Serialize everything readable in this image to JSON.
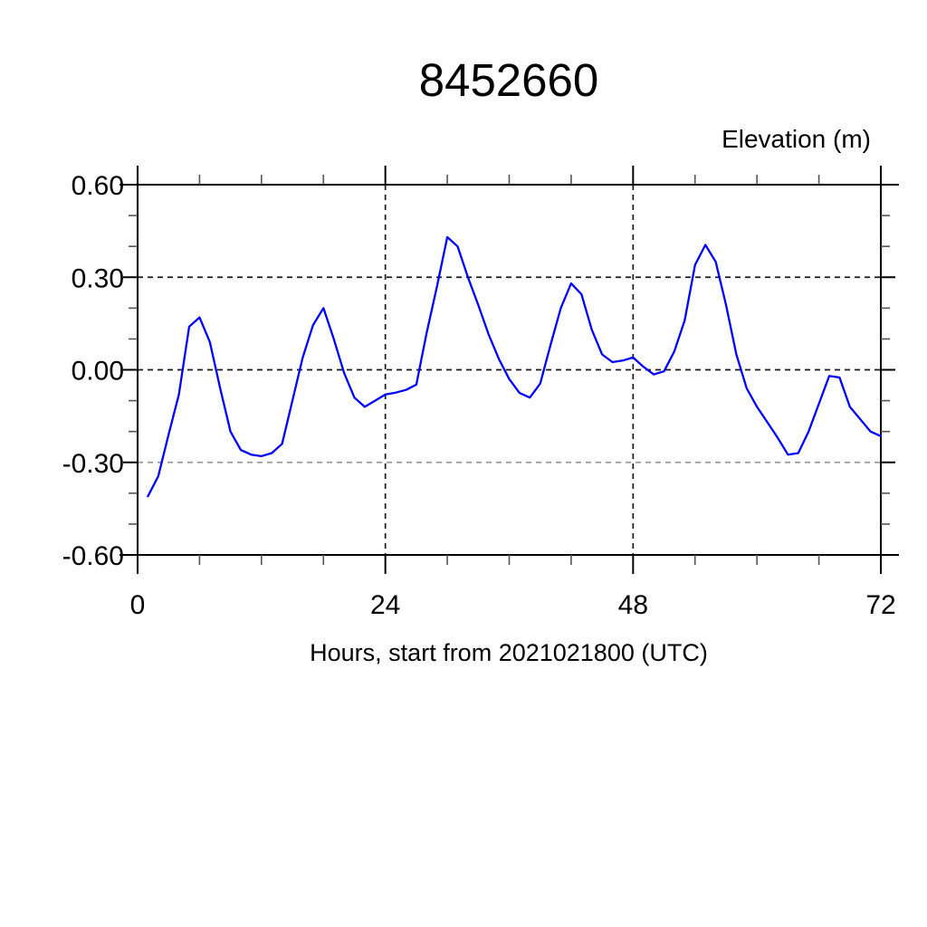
{
  "window": {
    "background": "#ffffff"
  },
  "chart_data": {
    "type": "line",
    "title": "8452660",
    "ylabel": "Elevation (m)",
    "xlabel": "Hours, start from 2021021800 (UTC)",
    "xlim": [
      0,
      72
    ],
    "ylim": [
      -0.6,
      0.6
    ],
    "xticks": {
      "major": [
        0,
        24,
        48,
        72
      ],
      "labels": [
        "0",
        "24",
        "48",
        "72"
      ],
      "minor_step": 6
    },
    "yticks": {
      "major": [
        0.6,
        0.3,
        0,
        -0.3,
        -0.6
      ],
      "labels": [
        "0.60",
        "0.30",
        "0.00",
        "-0.30",
        "-0.60"
      ],
      "minor_step": 0.1
    },
    "grid": {
      "vertical": [
        24,
        48
      ],
      "vertical_color": "#1a1a1a",
      "horizontal": [
        {
          "value": 0.3,
          "color": "#1a1a1a"
        },
        {
          "value": 0.0,
          "color": "#1a1a1a"
        },
        {
          "value": -0.3,
          "color": "#999999"
        }
      ],
      "dash": [
        6,
        5
      ],
      "style": "dashed"
    },
    "legend": "none",
    "frame_color": "#000000",
    "series": [
      {
        "name": "elevation",
        "color": "#0000ff",
        "x": [
          1,
          2,
          3,
          4,
          5,
          6,
          7,
          8,
          9,
          10,
          11,
          12,
          13,
          14,
          15,
          16,
          17,
          18,
          19,
          20,
          21,
          22,
          23,
          24,
          25,
          26,
          27,
          28,
          29,
          30,
          31,
          32,
          33,
          34,
          35,
          36,
          37,
          38,
          39,
          40,
          41,
          42,
          43,
          44,
          45,
          46,
          47,
          48,
          49,
          50,
          51,
          52,
          53,
          54,
          55,
          56,
          57,
          58,
          59,
          60,
          61,
          62,
          63,
          64,
          65,
          66,
          67,
          68,
          69,
          70,
          71,
          72
        ],
        "values": [
          -0.41,
          -0.345,
          -0.21,
          -0.08,
          0.14,
          0.17,
          0.09,
          -0.06,
          -0.2,
          -0.26,
          -0.275,
          -0.28,
          -0.27,
          -0.24,
          -0.1,
          0.04,
          0.145,
          0.2,
          0.1,
          -0.01,
          -0.09,
          -0.12,
          -0.1,
          -0.08,
          -0.074,
          -0.065,
          -0.048,
          0.12,
          0.27,
          0.43,
          0.4,
          0.3,
          0.21,
          0.115,
          0.035,
          -0.03,
          -0.075,
          -0.09,
          -0.045,
          0.08,
          0.2,
          0.28,
          0.245,
          0.13,
          0.05,
          0.025,
          0.03,
          0.04,
          0.01,
          -0.015,
          -0.005,
          0.06,
          0.16,
          0.34,
          0.405,
          0.35,
          0.21,
          0.05,
          -0.06,
          -0.12,
          -0.17,
          -0.22,
          -0.275,
          -0.27,
          -0.2,
          -0.11,
          -0.02,
          -0.025,
          -0.12,
          -0.16,
          -0.2,
          -0.215
        ]
      }
    ]
  }
}
